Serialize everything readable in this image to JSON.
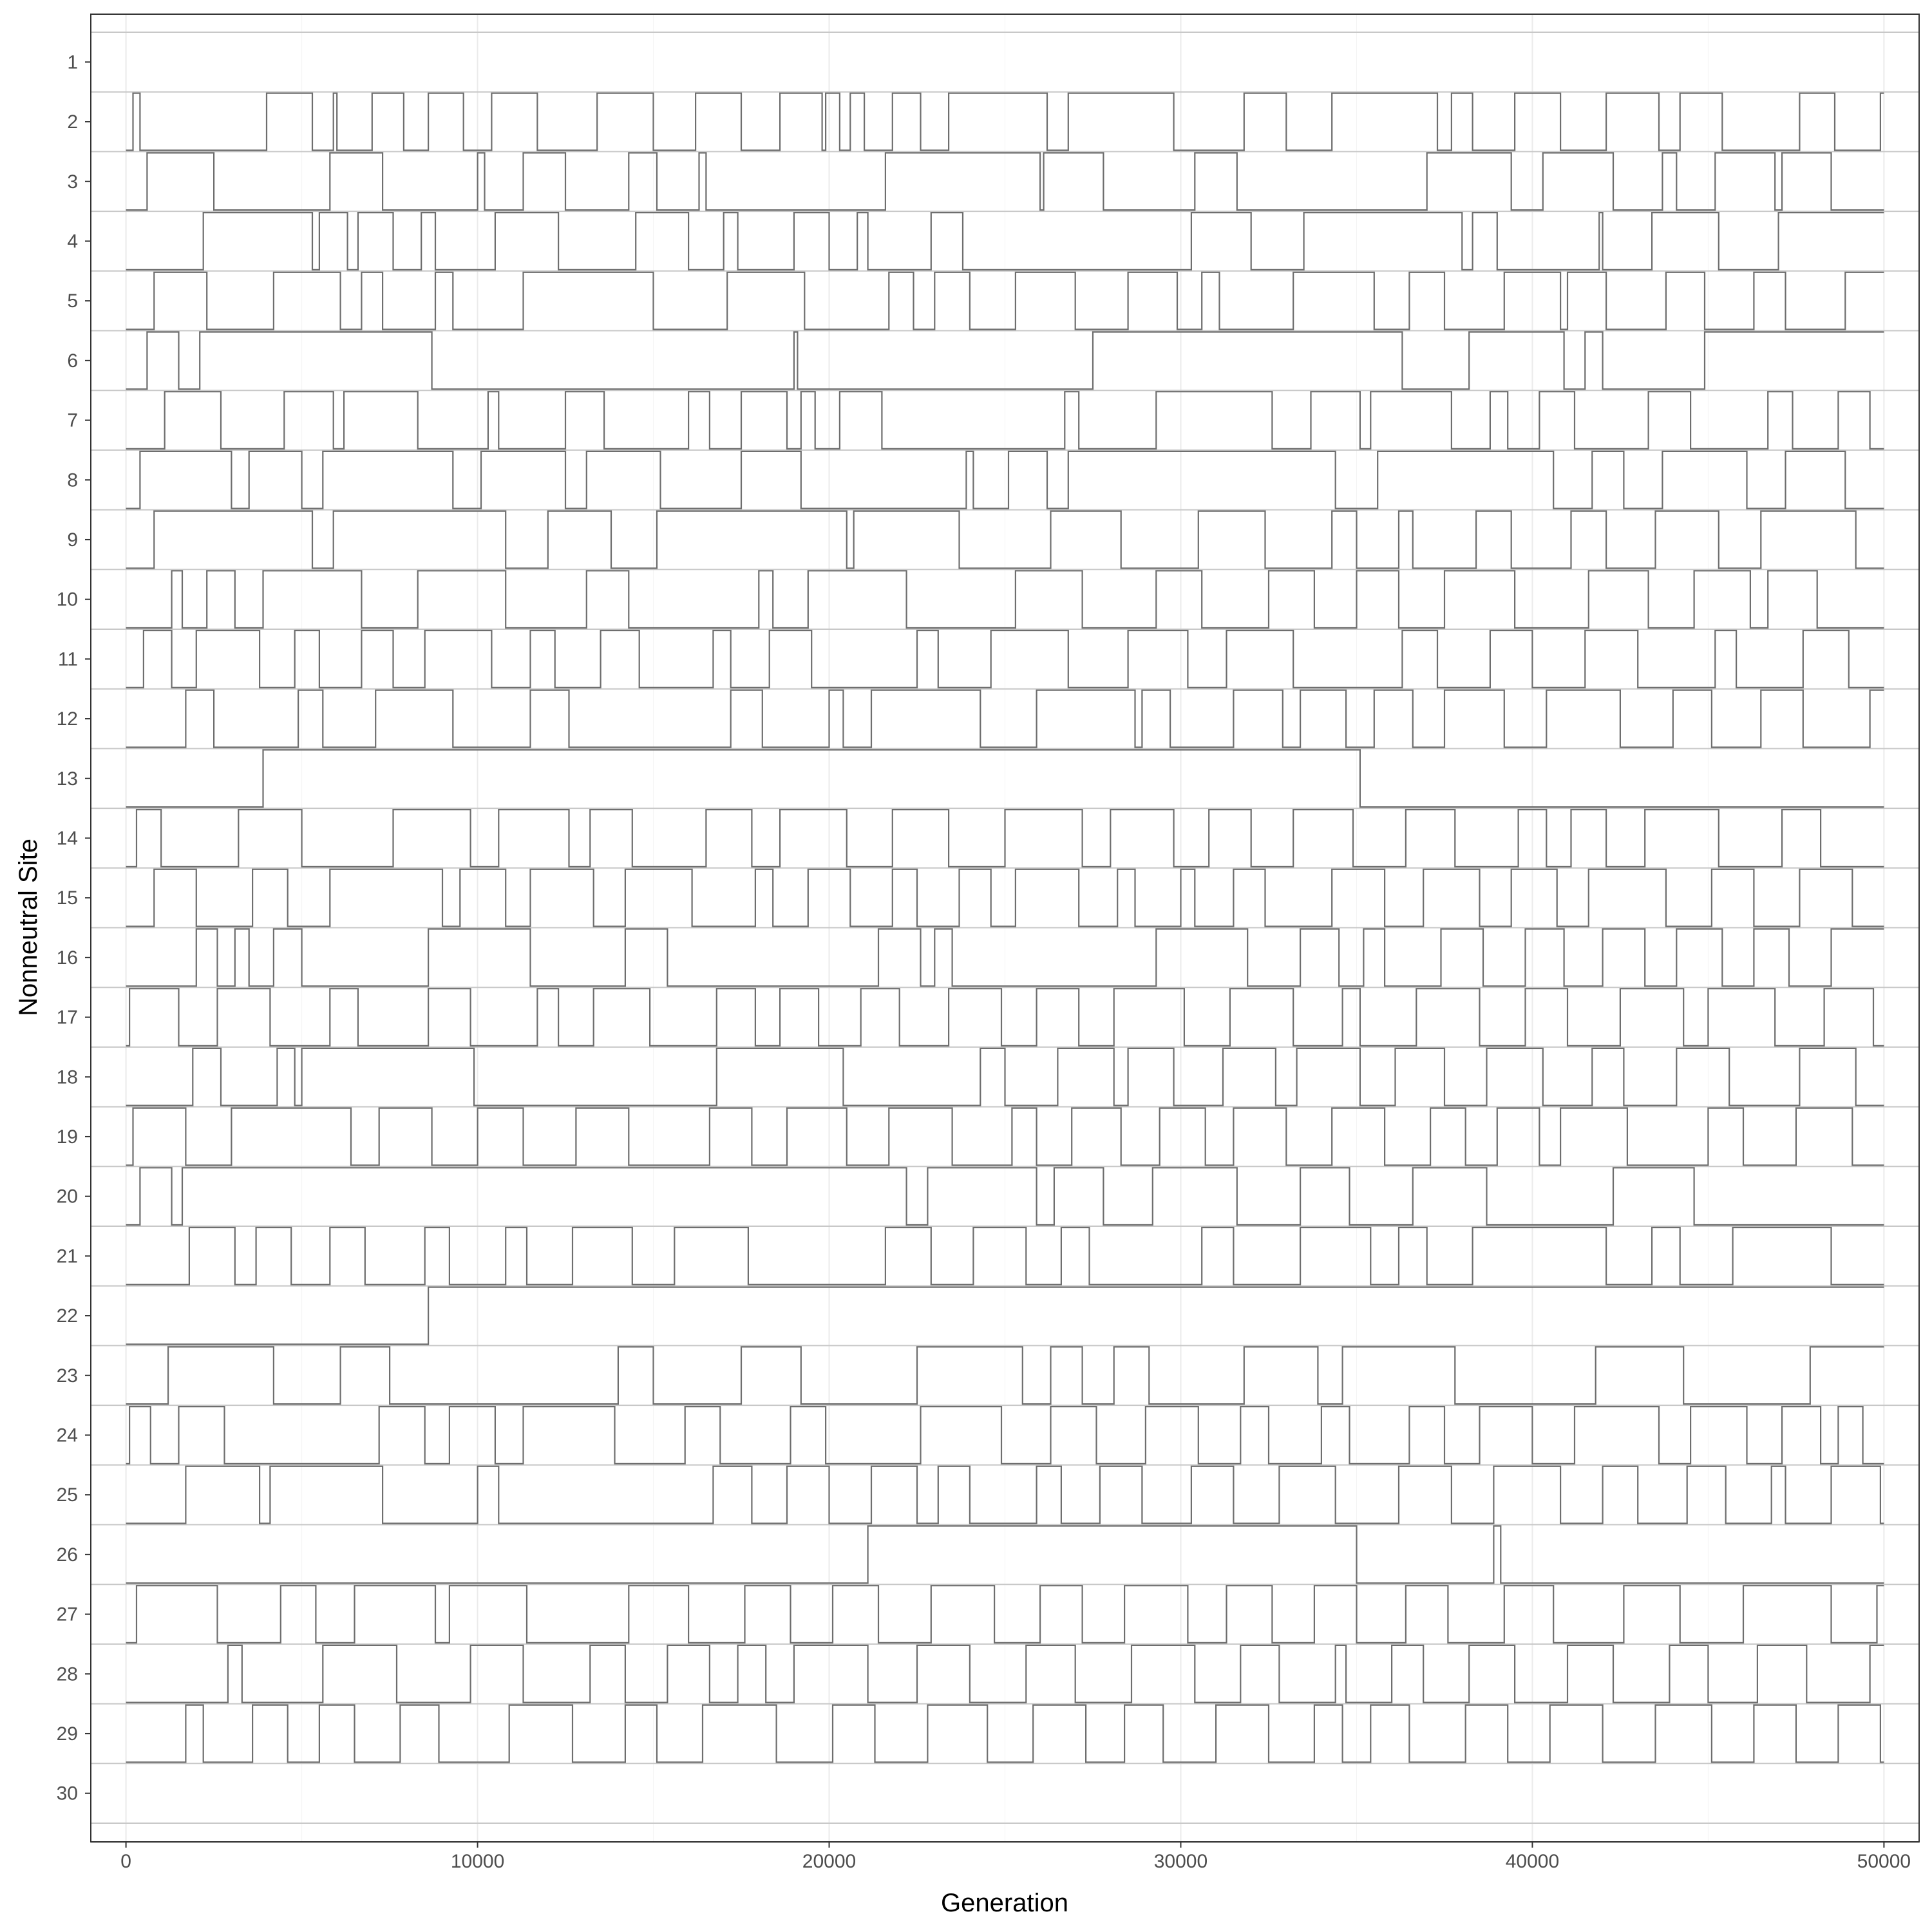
{
  "chart_data": {
    "type": "line",
    "title": "",
    "xlabel": "Generation",
    "ylabel": "Nonneutral Site",
    "xlim": [
      -1000,
      51000
    ],
    "x_ticks": [
      0,
      10000,
      20000,
      30000,
      40000,
      50000
    ],
    "x_tick_labels": [
      "0",
      "10000",
      "20000",
      "30000",
      "40000",
      "50000"
    ],
    "site_labels": [
      "1",
      "2",
      "3",
      "4",
      "5",
      "6",
      "7",
      "8",
      "9",
      "10",
      "11",
      "12",
      "13",
      "14",
      "15",
      "16",
      "17",
      "18",
      "19",
      "20",
      "21",
      "22",
      "23",
      "24",
      "25",
      "26",
      "27",
      "28",
      "29",
      "30"
    ],
    "series_value_range": [
      0,
      1
    ],
    "grid": true,
    "legend": "none",
    "line_color": "#6e6e6e",
    "series": [
      {
        "site": 1,
        "switch_generations": []
      },
      {
        "site": 2,
        "switch_generations": [
          200,
          400,
          4000,
          5300,
          5900,
          6000,
          7000,
          7900,
          8600,
          9600,
          10400,
          11700,
          13400,
          15000,
          16200,
          17500,
          18600,
          19800,
          19900,
          20300,
          20600,
          21000,
          21800,
          22600,
          23400,
          26200,
          26800,
          29800,
          31800,
          33000,
          34300,
          37300,
          37700,
          38300,
          39500,
          40800,
          42100,
          43600,
          44200,
          45400,
          47600,
          48600,
          49900
        ]
      },
      {
        "site": 3,
        "switch_generations": [
          600,
          2500,
          5800,
          7300,
          10000,
          10200,
          11300,
          12500,
          14300,
          15100,
          16300,
          16500,
          21600,
          26000,
          26100,
          27800,
          30400,
          31600,
          37000,
          39400,
          40300,
          42300,
          43700,
          44100,
          45200,
          46900,
          47100,
          48500
        ]
      },
      {
        "site": 4,
        "switch_generations": [
          2200,
          5300,
          5500,
          6300,
          6600,
          7600,
          8400,
          8800,
          10500,
          12300,
          14500,
          16000,
          17000,
          17400,
          19000,
          20000,
          20800,
          21100,
          22900,
          23800,
          30300,
          32000,
          33500,
          38000,
          38300,
          39000,
          41900,
          42000,
          43400,
          45300,
          47000
        ]
      },
      {
        "site": 5,
        "switch_generations": [
          800,
          2300,
          4200,
          6100,
          6700,
          7300,
          8800,
          9300,
          11300,
          15000,
          17100,
          19300,
          21700,
          22400,
          23000,
          24000,
          25300,
          27000,
          28500,
          29900,
          30600,
          31100,
          33200,
          35500,
          36500,
          37500,
          39200,
          40800,
          41000,
          42100,
          43800,
          44900,
          46300,
          47200,
          48900
        ]
      },
      {
        "site": 6,
        "switch_generations": [
          600,
          1500,
          2100,
          8700,
          19000,
          19100,
          27500,
          36300,
          38200,
          40900,
          41500,
          42000,
          44900
        ]
      },
      {
        "site": 7,
        "switch_generations": [
          1100,
          2700,
          4500,
          5900,
          6200,
          8300,
          10300,
          10600,
          12500,
          13600,
          16000,
          16600,
          17500,
          18800,
          19200,
          19600,
          20300,
          21500,
          26700,
          27100,
          29300,
          32600,
          33700,
          35100,
          35400,
          37700,
          38800,
          39300,
          40200,
          41200,
          43300,
          44500,
          46700,
          47400,
          48700,
          49600
        ]
      },
      {
        "site": 8,
        "switch_generations": [
          400,
          3000,
          3500,
          5000,
          5600,
          9300,
          10100,
          12500,
          13100,
          15200,
          17500,
          19200,
          23900,
          24100,
          25100,
          26200,
          26800,
          34400,
          35600,
          40600,
          41700,
          42600,
          43700,
          46100,
          47200,
          48900
        ]
      },
      {
        "site": 9,
        "switch_generations": [
          800,
          5300,
          5900,
          10800,
          12000,
          13800,
          15100,
          20500,
          20700,
          23700,
          26300,
          28300,
          30500,
          32400,
          34300,
          35000,
          36200,
          36600,
          38400,
          39400,
          41100,
          42100,
          43500,
          45300,
          46500,
          49200
        ]
      },
      {
        "site": 10,
        "switch_generations": [
          1300,
          1600,
          2300,
          3100,
          3900,
          6700,
          8300,
          10800,
          13100,
          14300,
          18000,
          18400,
          19400,
          22200,
          25300,
          27200,
          29300,
          30600,
          32500,
          33800,
          35000,
          36200,
          37500,
          39500,
          41600,
          43300,
          44600,
          46200,
          46700,
          48100
        ]
      },
      {
        "site": 11,
        "switch_generations": [
          500,
          1300,
          2000,
          3800,
          4800,
          5500,
          6700,
          7600,
          8500,
          10400,
          11500,
          12200,
          13500,
          14600,
          16700,
          17200,
          18300,
          19500,
          22500,
          23100,
          24600,
          26800,
          28500,
          30200,
          31300,
          33200,
          36300,
          37300,
          38800,
          40000,
          41500,
          43000,
          45200,
          45800,
          47700,
          49000
        ]
      },
      {
        "site": 12,
        "switch_generations": [
          1700,
          2500,
          4900,
          5600,
          7100,
          9300,
          11500,
          12600,
          17200,
          18100,
          20000,
          20400,
          21200,
          24300,
          25900,
          28700,
          28900,
          29700,
          31500,
          32900,
          33400,
          34700,
          35500,
          36600,
          37500,
          39200,
          40400,
          42500,
          44000,
          45100,
          46500,
          47700,
          49600
        ]
      },
      {
        "site": 13,
        "switch_generations": [
          3900,
          35100
        ]
      },
      {
        "site": 14,
        "switch_generations": [
          300,
          1000,
          3200,
          5000,
          7600,
          9800,
          10600,
          12600,
          13200,
          14400,
          16500,
          17800,
          18600,
          20500,
          21800,
          23400,
          25000,
          27200,
          28000,
          29800,
          30800,
          32000,
          33200,
          34900,
          36400,
          37800,
          39600,
          40400,
          41100,
          42100,
          43200,
          45300,
          47100,
          48200
        ]
      },
      {
        "site": 15,
        "switch_generations": [
          800,
          2000,
          3600,
          4600,
          5800,
          9000,
          9500,
          10800,
          11500,
          13300,
          14200,
          16100,
          17900,
          18400,
          19400,
          20600,
          21800,
          22500,
          23700,
          24600,
          25300,
          27100,
          28200,
          28700,
          30000,
          30400,
          31500,
          32400,
          34300,
          35800,
          36900,
          38500,
          39400,
          40700,
          41600,
          43800,
          45100,
          46300,
          47600,
          49100
        ]
      },
      {
        "site": 16,
        "switch_generations": [
          2000,
          2600,
          3100,
          3500,
          4200,
          5000,
          8600,
          11500,
          14200,
          15400,
          21400,
          22600,
          23000,
          23500,
          29300,
          31900,
          33400,
          34500,
          35200,
          35800,
          37400,
          38600,
          39800,
          40900,
          42000,
          43200,
          44100,
          45400,
          46300,
          47300,
          48500
        ]
      },
      {
        "site": 17,
        "switch_generations": [
          100,
          1500,
          2600,
          4100,
          5800,
          6600,
          8600,
          9800,
          11700,
          12300,
          13300,
          14900,
          16800,
          17900,
          18600,
          19700,
          20900,
          22000,
          23400,
          24900,
          25900,
          27100,
          28100,
          30100,
          31400,
          33200,
          34600,
          35100,
          36700,
          38500,
          39800,
          41000,
          42500,
          44300,
          45000,
          46900,
          48300,
          49700
        ]
      },
      {
        "site": 18,
        "switch_generations": [
          1900,
          2700,
          4300,
          4800,
          5000,
          9900,
          16800,
          20400,
          24300,
          25000,
          26500,
          28100,
          28500,
          29800,
          31200,
          32700,
          33300,
          35100,
          36100,
          37500,
          38700,
          40300,
          41700,
          42600,
          44100,
          45600,
          47600,
          49200
        ]
      },
      {
        "site": 19,
        "switch_generations": [
          200,
          1700,
          3000,
          6400,
          7200,
          8700,
          10000,
          11300,
          12800,
          14300,
          16600,
          17800,
          18800,
          20500,
          21700,
          23500,
          25200,
          25900,
          26900,
          28300,
          29400,
          30700,
          31500,
          33000,
          34300,
          35800,
          37100,
          38100,
          39000,
          40200,
          40800,
          42700,
          45000,
          46000,
          47500,
          49100
        ]
      },
      {
        "site": 20,
        "switch_generations": [
          400,
          1300,
          1600,
          22200,
          22800,
          25900,
          26400,
          27800,
          29200,
          31600,
          33400,
          34800,
          36600,
          38700,
          42300,
          44600
        ]
      },
      {
        "site": 21,
        "switch_generations": [
          1800,
          3100,
          3700,
          4700,
          5800,
          6800,
          8500,
          9200,
          10800,
          11400,
          12700,
          14400,
          15600,
          17700,
          21600,
          22900,
          24100,
          25600,
          26600,
          27400,
          30600,
          31500,
          33400,
          35400,
          36200,
          37000,
          38300,
          42100,
          43400,
          44200,
          45700,
          48500
        ]
      },
      {
        "site": 22,
        "switch_generations": [
          8600
        ]
      },
      {
        "site": 23,
        "switch_generations": [
          1200,
          4200,
          6100,
          7500,
          14000,
          15000,
          17500,
          19200,
          22500,
          25500,
          26300,
          27200,
          28100,
          29100,
          31800,
          33900,
          34600,
          37800,
          41800,
          44300,
          47900
        ]
      },
      {
        "site": 24,
        "switch_generations": [
          100,
          700,
          1500,
          2800,
          7200,
          8500,
          9200,
          10500,
          11300,
          13900,
          15900,
          16900,
          18900,
          19900,
          22600,
          24900,
          26300,
          27600,
          29000,
          30500,
          31700,
          32500,
          34000,
          34800,
          36500,
          37500,
          38500,
          40000,
          41200,
          43600,
          44500,
          46100,
          47100,
          48200,
          48700,
          49400
        ]
      },
      {
        "site": 25,
        "switch_generations": [
          1700,
          3800,
          4100,
          7300,
          10000,
          10600,
          16700,
          17800,
          18800,
          20000,
          21200,
          22500,
          23100,
          24000,
          25900,
          26600,
          27700,
          28900,
          30300,
          31500,
          32800,
          34400,
          36200,
          37700,
          38900,
          40800,
          42000,
          43000,
          44400,
          45500,
          46800,
          47200,
          48500,
          49900
        ]
      },
      {
        "site": 26,
        "switch_generations": [
          21100,
          35000,
          38900,
          39100
        ]
      },
      {
        "site": 27,
        "switch_generations": [
          300,
          2600,
          4400,
          5400,
          6500,
          8800,
          9200,
          11400,
          14300,
          16000,
          17600,
          18900,
          20100,
          21400,
          22900,
          24700,
          26000,
          27200,
          28400,
          30200,
          31300,
          32600,
          33800,
          35000,
          36400,
          37600,
          39200,
          40600,
          42600,
          44200,
          46000,
          48500,
          49800
        ]
      },
      {
        "site": 28,
        "switch_generations": [
          2900,
          3300,
          5600,
          7700,
          9800,
          11300,
          13200,
          14200,
          15400,
          16600,
          17400,
          18200,
          19000,
          21100,
          22500,
          24000,
          25600,
          27000,
          28600,
          30400,
          31700,
          32800,
          34400,
          34700,
          36000,
          36900,
          38200,
          39500,
          41000,
          42300,
          43900,
          45000,
          46400,
          47800,
          49600
        ]
      },
      {
        "site": 29,
        "switch_generations": [
          1700,
          2200,
          3600,
          4600,
          5500,
          6500,
          7800,
          8900,
          10900,
          12700,
          14200,
          15100,
          16400,
          18500,
          20100,
          21300,
          22800,
          24500,
          25800,
          27300,
          28400,
          29500,
          31000,
          32500,
          33800,
          34600,
          35400,
          36500,
          38100,
          39300,
          40500,
          42000,
          43500,
          45100,
          46300,
          47500,
          48700,
          49900
        ]
      },
      {
        "site": 30,
        "switch_generations": []
      }
    ]
  }
}
